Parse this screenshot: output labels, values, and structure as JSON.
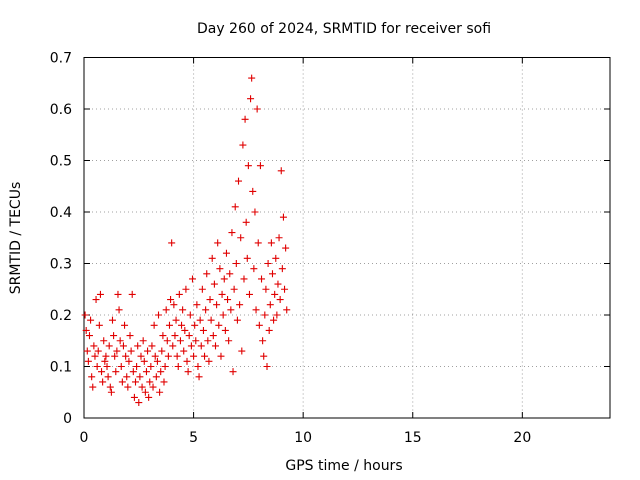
{
  "chart_data": {
    "type": "scatter",
    "title": "Day 260 of 2024, SRMTID for receiver sofi",
    "xlabel": "GPS time / hours",
    "ylabel": "SRMTID / TECUs",
    "xlim": [
      0,
      24
    ],
    "ylim": [
      0,
      0.7
    ],
    "xticks": [
      0,
      5,
      10,
      15,
      20
    ],
    "yticks": [
      0,
      0.1,
      0.2,
      0.3,
      0.4,
      0.5,
      0.6,
      0.7
    ],
    "xtick_labels": [
      "0",
      "5",
      "10",
      "15",
      "20"
    ],
    "ytick_labels": [
      "0",
      "0.1",
      "0.2",
      "0.3",
      "0.4",
      "0.5",
      "0.6",
      "0.7"
    ],
    "grid": true,
    "marker": "+",
    "color": "#e00000",
    "series": [
      {
        "name": "SRMTID",
        "points": [
          [
            0.05,
            0.2
          ],
          [
            0.1,
            0.17
          ],
          [
            0.15,
            0.13
          ],
          [
            0.2,
            0.11
          ],
          [
            0.25,
            0.16
          ],
          [
            0.3,
            0.19
          ],
          [
            0.35,
            0.08
          ],
          [
            0.4,
            0.06
          ],
          [
            0.45,
            0.14
          ],
          [
            0.5,
            0.12
          ],
          [
            0.55,
            0.23
          ],
          [
            0.6,
            0.1
          ],
          [
            0.65,
            0.13
          ],
          [
            0.7,
            0.18
          ],
          [
            0.75,
            0.24
          ],
          [
            0.8,
            0.09
          ],
          [
            0.85,
            0.07
          ],
          [
            0.9,
            0.15
          ],
          [
            0.95,
            0.11
          ],
          [
            1.0,
            0.12
          ],
          [
            1.05,
            0.1
          ],
          [
            1.1,
            0.08
          ],
          [
            1.15,
            0.14
          ],
          [
            1.2,
            0.06
          ],
          [
            1.25,
            0.05
          ],
          [
            1.3,
            0.19
          ],
          [
            1.35,
            0.16
          ],
          [
            1.4,
            0.12
          ],
          [
            1.45,
            0.09
          ],
          [
            1.5,
            0.13
          ],
          [
            1.55,
            0.24
          ],
          [
            1.6,
            0.21
          ],
          [
            1.65,
            0.15
          ],
          [
            1.7,
            0.1
          ],
          [
            1.75,
            0.07
          ],
          [
            1.8,
            0.14
          ],
          [
            1.85,
            0.18
          ],
          [
            1.9,
            0.12
          ],
          [
            1.95,
            0.08
          ],
          [
            2.0,
            0.06
          ],
          [
            2.05,
            0.11
          ],
          [
            2.1,
            0.16
          ],
          [
            2.15,
            0.13
          ],
          [
            2.2,
            0.24
          ],
          [
            2.25,
            0.09
          ],
          [
            2.3,
            0.04
          ],
          [
            2.35,
            0.07
          ],
          [
            2.4,
            0.1
          ],
          [
            2.45,
            0.14
          ],
          [
            2.5,
            0.03
          ],
          [
            2.55,
            0.08
          ],
          [
            2.6,
            0.12
          ],
          [
            2.65,
            0.06
          ],
          [
            2.7,
            0.15
          ],
          [
            2.75,
            0.11
          ],
          [
            2.8,
            0.05
          ],
          [
            2.85,
            0.09
          ],
          [
            2.9,
            0.13
          ],
          [
            2.95,
            0.04
          ],
          [
            3.0,
            0.07
          ],
          [
            3.05,
            0.1
          ],
          [
            3.1,
            0.14
          ],
          [
            3.15,
            0.06
          ],
          [
            3.2,
            0.18
          ],
          [
            3.25,
            0.12
          ],
          [
            3.3,
            0.08
          ],
          [
            3.35,
            0.11
          ],
          [
            3.4,
            0.2
          ],
          [
            3.45,
            0.05
          ],
          [
            3.5,
            0.09
          ],
          [
            3.55,
            0.13
          ],
          [
            3.6,
            0.16
          ],
          [
            3.65,
            0.07
          ],
          [
            3.7,
            0.1
          ],
          [
            3.75,
            0.21
          ],
          [
            3.8,
            0.15
          ],
          [
            3.85,
            0.12
          ],
          [
            3.9,
            0.18
          ],
          [
            3.95,
            0.23
          ],
          [
            4.0,
            0.34
          ],
          [
            4.05,
            0.14
          ],
          [
            4.1,
            0.22
          ],
          [
            4.15,
            0.16
          ],
          [
            4.2,
            0.19
          ],
          [
            4.25,
            0.12
          ],
          [
            4.3,
            0.1
          ],
          [
            4.35,
            0.24
          ],
          [
            4.4,
            0.15
          ],
          [
            4.45,
            0.18
          ],
          [
            4.5,
            0.21
          ],
          [
            4.55,
            0.13
          ],
          [
            4.6,
            0.17
          ],
          [
            4.65,
            0.25
          ],
          [
            4.7,
            0.11
          ],
          [
            4.75,
            0.09
          ],
          [
            4.8,
            0.16
          ],
          [
            4.85,
            0.2
          ],
          [
            4.9,
            0.14
          ],
          [
            4.95,
            0.27
          ],
          [
            5.0,
            0.12
          ],
          [
            5.05,
            0.18
          ],
          [
            5.1,
            0.15
          ],
          [
            5.15,
            0.22
          ],
          [
            5.2,
            0.1
          ],
          [
            5.25,
            0.08
          ],
          [
            5.3,
            0.19
          ],
          [
            5.35,
            0.14
          ],
          [
            5.4,
            0.25
          ],
          [
            5.45,
            0.17
          ],
          [
            5.5,
            0.12
          ],
          [
            5.55,
            0.21
          ],
          [
            5.6,
            0.28
          ],
          [
            5.65,
            0.15
          ],
          [
            5.7,
            0.11
          ],
          [
            5.75,
            0.23
          ],
          [
            5.8,
            0.19
          ],
          [
            5.85,
            0.31
          ],
          [
            5.9,
            0.16
          ],
          [
            5.95,
            0.26
          ],
          [
            6.0,
            0.14
          ],
          [
            6.05,
            0.22
          ],
          [
            6.1,
            0.34
          ],
          [
            6.15,
            0.18
          ],
          [
            6.2,
            0.29
          ],
          [
            6.25,
            0.12
          ],
          [
            6.3,
            0.24
          ],
          [
            6.35,
            0.2
          ],
          [
            6.4,
            0.27
          ],
          [
            6.45,
            0.17
          ],
          [
            6.5,
            0.32
          ],
          [
            6.55,
            0.23
          ],
          [
            6.6,
            0.15
          ],
          [
            6.65,
            0.28
          ],
          [
            6.7,
            0.21
          ],
          [
            6.75,
            0.36
          ],
          [
            6.8,
            0.09
          ],
          [
            6.85,
            0.25
          ],
          [
            6.9,
            0.41
          ],
          [
            6.95,
            0.3
          ],
          [
            7.0,
            0.19
          ],
          [
            7.05,
            0.46
          ],
          [
            7.1,
            0.22
          ],
          [
            7.15,
            0.35
          ],
          [
            7.2,
            0.13
          ],
          [
            7.25,
            0.53
          ],
          [
            7.3,
            0.27
          ],
          [
            7.35,
            0.58
          ],
          [
            7.4,
            0.38
          ],
          [
            7.45,
            0.31
          ],
          [
            7.5,
            0.49
          ],
          [
            7.55,
            0.24
          ],
          [
            7.6,
            0.62
          ],
          [
            7.65,
            0.66
          ],
          [
            7.7,
            0.44
          ],
          [
            7.75,
            0.29
          ],
          [
            7.8,
            0.4
          ],
          [
            7.85,
            0.21
          ],
          [
            7.9,
            0.6
          ],
          [
            7.95,
            0.34
          ],
          [
            8.0,
            0.18
          ],
          [
            8.05,
            0.49
          ],
          [
            8.1,
            0.27
          ],
          [
            8.15,
            0.15
          ],
          [
            8.2,
            0.12
          ],
          [
            8.25,
            0.2
          ],
          [
            8.3,
            0.25
          ],
          [
            8.35,
            0.1
          ],
          [
            8.4,
            0.3
          ],
          [
            8.45,
            0.17
          ],
          [
            8.5,
            0.22
          ],
          [
            8.55,
            0.34
          ],
          [
            8.6,
            0.28
          ],
          [
            8.65,
            0.19
          ],
          [
            8.7,
            0.24
          ],
          [
            8.75,
            0.31
          ],
          [
            8.8,
            0.2
          ],
          [
            8.85,
            0.26
          ],
          [
            8.9,
            0.35
          ],
          [
            8.95,
            0.23
          ],
          [
            9.0,
            0.48
          ],
          [
            9.05,
            0.29
          ],
          [
            9.1,
            0.39
          ],
          [
            9.15,
            0.25
          ],
          [
            9.2,
            0.33
          ],
          [
            9.25,
            0.21
          ]
        ]
      }
    ]
  }
}
